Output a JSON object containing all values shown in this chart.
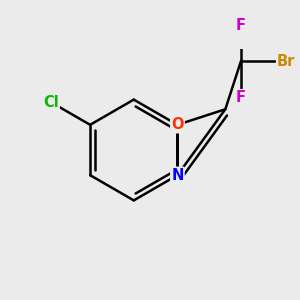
{
  "background_color": "#ebebeb",
  "bond_color": "#000000",
  "bond_width": 1.8,
  "atom_labels": {
    "Cl": {
      "color": "#00bb00",
      "fontsize": 10.5
    },
    "O": {
      "color": "#ff3300",
      "fontsize": 10.5
    },
    "N": {
      "color": "#0000ff",
      "fontsize": 10.5
    },
    "F": {
      "color": "#cc00cc",
      "fontsize": 10.5
    },
    "Br": {
      "color": "#cc8800",
      "fontsize": 10.5
    }
  },
  "figsize": [
    3.0,
    3.0
  ],
  "dpi": 100
}
